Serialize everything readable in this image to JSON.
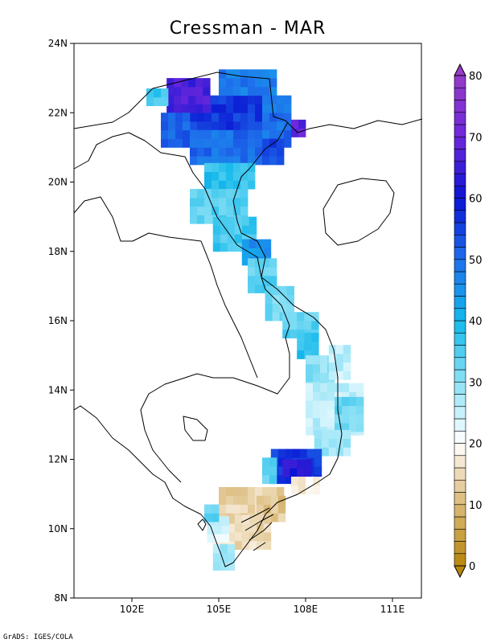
{
  "title": "Cressman - MAR",
  "credit": "GrADS: IGES/COLA",
  "chart_data": {
    "type": "heatmap",
    "title": "Cressman - MAR",
    "x_ticks": [
      {
        "value": 102,
        "label": "102E"
      },
      {
        "value": 105,
        "label": "105E"
      },
      {
        "value": 108,
        "label": "108E"
      },
      {
        "value": 111,
        "label": "111E"
      }
    ],
    "y_ticks": [
      {
        "value": 8,
        "label": "8N"
      },
      {
        "value": 10,
        "label": "10N"
      },
      {
        "value": 12,
        "label": "12N"
      },
      {
        "value": 14,
        "label": "14N"
      },
      {
        "value": 16,
        "label": "16N"
      },
      {
        "value": 18,
        "label": "18N"
      },
      {
        "value": 20,
        "label": "20N"
      },
      {
        "value": 22,
        "label": "22N"
      },
      {
        "value": 24,
        "label": "24N"
      }
    ],
    "xlim": [
      100.0,
      112.0
    ],
    "ylim": [
      8,
      24
    ],
    "colorbar": {
      "min": 0,
      "max": 80,
      "ticks": [
        {
          "value": 0,
          "label": "0"
        },
        {
          "value": 10,
          "label": "10"
        },
        {
          "value": 20,
          "label": "20"
        },
        {
          "value": 30,
          "label": "30"
        },
        {
          "value": 40,
          "label": "40"
        },
        {
          "value": 50,
          "label": "50"
        },
        {
          "value": 60,
          "label": "60"
        },
        {
          "value": 70,
          "label": "70"
        },
        {
          "value": 80,
          "label": "80"
        }
      ]
    },
    "regions": [
      {
        "lon": [
          103.5,
          107.0
        ],
        "lat": [
          21.5,
          22.5
        ],
        "value": 56
      },
      {
        "lon": [
          103.2,
          104.5
        ],
        "lat": [
          22.0,
          22.8
        ],
        "value": 66
      },
      {
        "lon": [
          103.0,
          104.0
        ],
        "lat": [
          21.0,
          22.0
        ],
        "value": 52
      },
      {
        "lon": [
          104.0,
          106.5
        ],
        "lat": [
          20.5,
          21.5
        ],
        "value": 50
      },
      {
        "lon": [
          105.0,
          107.0
        ],
        "lat": [
          22.5,
          23.2
        ],
        "value": 48
      },
      {
        "lon": [
          106.5,
          107.5
        ],
        "lat": [
          21.0,
          22.5
        ],
        "value": 50
      },
      {
        "lon": [
          107.5,
          108.0
        ],
        "lat": [
          21.3,
          21.8
        ],
        "value": 68
      },
      {
        "lon": [
          106.5,
          107.2
        ],
        "lat": [
          20.5,
          21.2
        ],
        "value": 54
      },
      {
        "lon": [
          102.5,
          103.2
        ],
        "lat": [
          22.2,
          22.6
        ],
        "value": 36
      },
      {
        "lon": [
          104.5,
          106.2
        ],
        "lat": [
          19.8,
          20.5
        ],
        "value": 38
      },
      {
        "lon": [
          104.0,
          105.8
        ],
        "lat": [
          18.8,
          19.8
        ],
        "value": 34
      },
      {
        "lon": [
          104.8,
          106.2
        ],
        "lat": [
          18.0,
          18.8
        ],
        "value": 36
      },
      {
        "lon": [
          105.8,
          106.7
        ],
        "lat": [
          17.6,
          18.2
        ],
        "value": 45
      },
      {
        "lon": [
          106.0,
          106.8
        ],
        "lat": [
          16.8,
          17.6
        ],
        "value": 34
      },
      {
        "lon": [
          106.6,
          107.6
        ],
        "lat": [
          16.0,
          16.8
        ],
        "value": 32
      },
      {
        "lon": [
          107.2,
          108.4
        ],
        "lat": [
          15.5,
          16.1
        ],
        "value": 34
      },
      {
        "lon": [
          107.7,
          108.4
        ],
        "lat": [
          14.9,
          15.5
        ],
        "value": 38
      },
      {
        "lon": [
          108.0,
          109.0
        ],
        "lat": [
          14.0,
          15.0
        ],
        "value": 30
      },
      {
        "lon": [
          108.8,
          109.4
        ],
        "lat": [
          14.3,
          15.2
        ],
        "value": 26
      },
      {
        "lon": [
          108.0,
          109.8
        ],
        "lat": [
          12.7,
          14.0
        ],
        "value": 26
      },
      {
        "lon": [
          109.0,
          109.8
        ],
        "lat": [
          12.8,
          13.6
        ],
        "value": 32
      },
      {
        "lon": [
          108.3,
          109.4
        ],
        "lat": [
          12.1,
          12.8
        ],
        "value": 28
      },
      {
        "lon": [
          106.8,
          108.5
        ],
        "lat": [
          11.3,
          12.2
        ],
        "value": 56
      },
      {
        "lon": [
          107.2,
          108.0
        ],
        "lat": [
          11.5,
          12.0
        ],
        "value": 62
      },
      {
        "lon": [
          106.5,
          106.9
        ],
        "lat": [
          11.3,
          12.0
        ],
        "value": 34
      },
      {
        "lon": [
          107.5,
          108.6
        ],
        "lat": [
          11.0,
          11.4
        ],
        "value": 18
      },
      {
        "lon": [
          105.0,
          107.2
        ],
        "lat": [
          10.2,
          11.0
        ],
        "value": 14
      },
      {
        "lon": [
          106.3,
          107.2
        ],
        "lat": [
          10.2,
          10.8
        ],
        "value": 12
      },
      {
        "lon": [
          104.8,
          106.6
        ],
        "lat": [
          9.4,
          10.2
        ],
        "value": 15
      },
      {
        "lon": [
          104.6,
          105.2
        ],
        "lat": [
          9.6,
          10.2
        ],
        "value": 24
      },
      {
        "lon": [
          104.8,
          105.4
        ],
        "lat": [
          8.8,
          9.4
        ],
        "value": 28
      },
      {
        "lon": [
          104.5,
          104.8
        ],
        "lat": [
          10.2,
          10.6
        ],
        "value": 34
      }
    ]
  }
}
